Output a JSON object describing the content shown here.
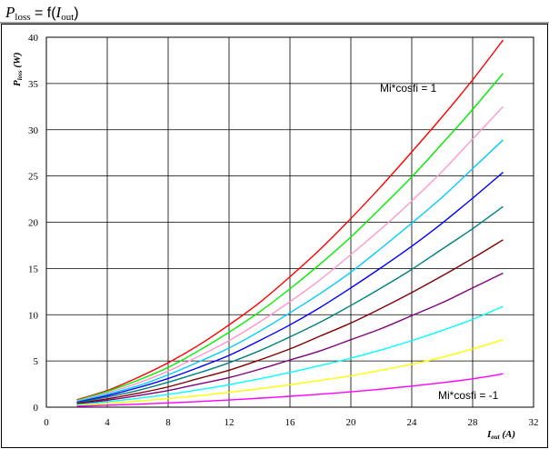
{
  "chart_data": {
    "type": "line",
    "title": {
      "lhs_symbol": "P",
      "lhs_sub": "loss",
      "equals": " = f(",
      "arg_symbol": "I",
      "arg_sub": "out",
      "close": ")"
    },
    "xlabel": {
      "symbol": "I",
      "sub": "out",
      "unit": " (A)"
    },
    "ylabel": {
      "symbol": "P",
      "sub": "loss",
      "unit": " (W)"
    },
    "xlim": [
      0,
      32
    ],
    "ylim": [
      0,
      40
    ],
    "xticks": [
      "0",
      "4",
      "8",
      "12",
      "16",
      "20",
      "24",
      "28",
      "32"
    ],
    "yticks": [
      "0",
      "5",
      "10",
      "15",
      "20",
      "25",
      "30",
      "35",
      "40"
    ],
    "grid": true,
    "annotations": {
      "top": "Mi*cosfi = 1",
      "bottom": "Mi*cosfi = -1"
    },
    "x": [
      2,
      4,
      6,
      8,
      10,
      12,
      14,
      16,
      18,
      20,
      22,
      24,
      26,
      28,
      30
    ],
    "series": [
      {
        "color": "#ff0000",
        "values": [
          0.8,
          1.8,
          3.2,
          4.8,
          6.7,
          8.9,
          11.3,
          14.1,
          17.1,
          20.4,
          23.9,
          27.6,
          31.4,
          35.4,
          39.7
        ]
      },
      {
        "color": "#00ee00",
        "values": [
          0.73,
          1.7,
          2.9,
          4.3,
          6.1,
          8.1,
          10.3,
          12.8,
          15.5,
          18.4,
          21.6,
          24.9,
          28.5,
          32.2,
          36.1
        ]
      },
      {
        "color": "#ff99cc",
        "values": [
          0.67,
          1.55,
          2.6,
          3.9,
          5.5,
          7.2,
          9.2,
          11.4,
          13.8,
          16.5,
          19.3,
          22.3,
          25.5,
          29.0,
          32.5
        ]
      },
      {
        "color": "#00ccff",
        "values": [
          0.6,
          1.4,
          2.3,
          3.5,
          4.9,
          6.4,
          8.2,
          10.2,
          12.3,
          14.6,
          17.2,
          19.9,
          22.7,
          25.8,
          28.9
        ]
      },
      {
        "color": "#0000ff",
        "values": [
          0.53,
          1.25,
          2.1,
          3.1,
          4.3,
          5.6,
          7.2,
          8.9,
          10.8,
          12.9,
          15.1,
          17.4,
          19.9,
          22.6,
          25.4
        ]
      },
      {
        "color": "#008080",
        "values": [
          0.47,
          1.1,
          1.8,
          2.7,
          3.7,
          4.8,
          6.1,
          7.6,
          9.2,
          11.0,
          12.9,
          14.9,
          17.1,
          19.3,
          21.7
        ]
      },
      {
        "color": "#800000",
        "values": [
          0.4,
          0.9,
          1.5,
          2.2,
          3.1,
          4.0,
          5.1,
          6.3,
          7.7,
          9.1,
          10.7,
          12.4,
          14.2,
          16.1,
          18.1
        ]
      },
      {
        "color": "#800080",
        "values": [
          0.33,
          0.75,
          1.25,
          1.8,
          2.5,
          3.2,
          4.1,
          5.1,
          6.1,
          7.3,
          8.5,
          9.9,
          11.3,
          12.9,
          14.5
        ]
      },
      {
        "color": "#00ffff",
        "values": [
          0.26,
          0.58,
          0.95,
          1.38,
          1.87,
          2.43,
          3.06,
          3.75,
          4.5,
          5.3,
          6.2,
          7.2,
          8.3,
          9.5,
          10.9
        ]
      },
      {
        "color": "#ffff00",
        "values": [
          0.18,
          0.4,
          0.65,
          0.93,
          1.25,
          1.6,
          2.0,
          2.43,
          2.9,
          3.4,
          4.0,
          4.65,
          5.4,
          6.3,
          7.3
        ]
      },
      {
        "color": "#ff00ff",
        "values": [
          0.1,
          0.21,
          0.33,
          0.46,
          0.61,
          0.78,
          0.97,
          1.18,
          1.41,
          1.66,
          1.95,
          2.28,
          2.65,
          3.07,
          3.6
        ]
      }
    ]
  }
}
